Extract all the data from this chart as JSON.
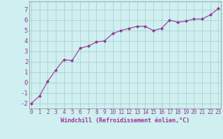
{
  "x": [
    0,
    1,
    2,
    3,
    4,
    5,
    6,
    7,
    8,
    9,
    10,
    11,
    12,
    13,
    14,
    15,
    16,
    17,
    18,
    19,
    20,
    21,
    22,
    23
  ],
  "y": [
    -2.0,
    -1.3,
    0.1,
    1.2,
    2.2,
    2.1,
    3.3,
    3.5,
    3.9,
    4.0,
    4.7,
    5.0,
    5.2,
    5.4,
    5.4,
    5.0,
    5.2,
    6.0,
    5.8,
    5.9,
    6.1,
    6.1,
    6.5,
    7.1
  ],
  "line_color": "#993399",
  "marker": "D",
  "marker_size": 2.0,
  "bg_color": "#cef0f0",
  "grid_color": "#aac8c8",
  "xlabel": "Windchill (Refroidissement éolien,°C)",
  "ylim": [
    -2.5,
    7.8
  ],
  "xlim": [
    -0.3,
    23.3
  ],
  "yticks": [
    -2,
    -1,
    0,
    1,
    2,
    3,
    4,
    5,
    6,
    7
  ],
  "xticks": [
    0,
    1,
    2,
    3,
    4,
    5,
    6,
    7,
    8,
    9,
    10,
    11,
    12,
    13,
    14,
    15,
    16,
    17,
    18,
    19,
    20,
    21,
    22,
    23
  ],
  "font_color": "#993399",
  "tick_fontsize": 5.5,
  "xlabel_fontsize": 6.0,
  "ytick_fontsize": 6.5
}
